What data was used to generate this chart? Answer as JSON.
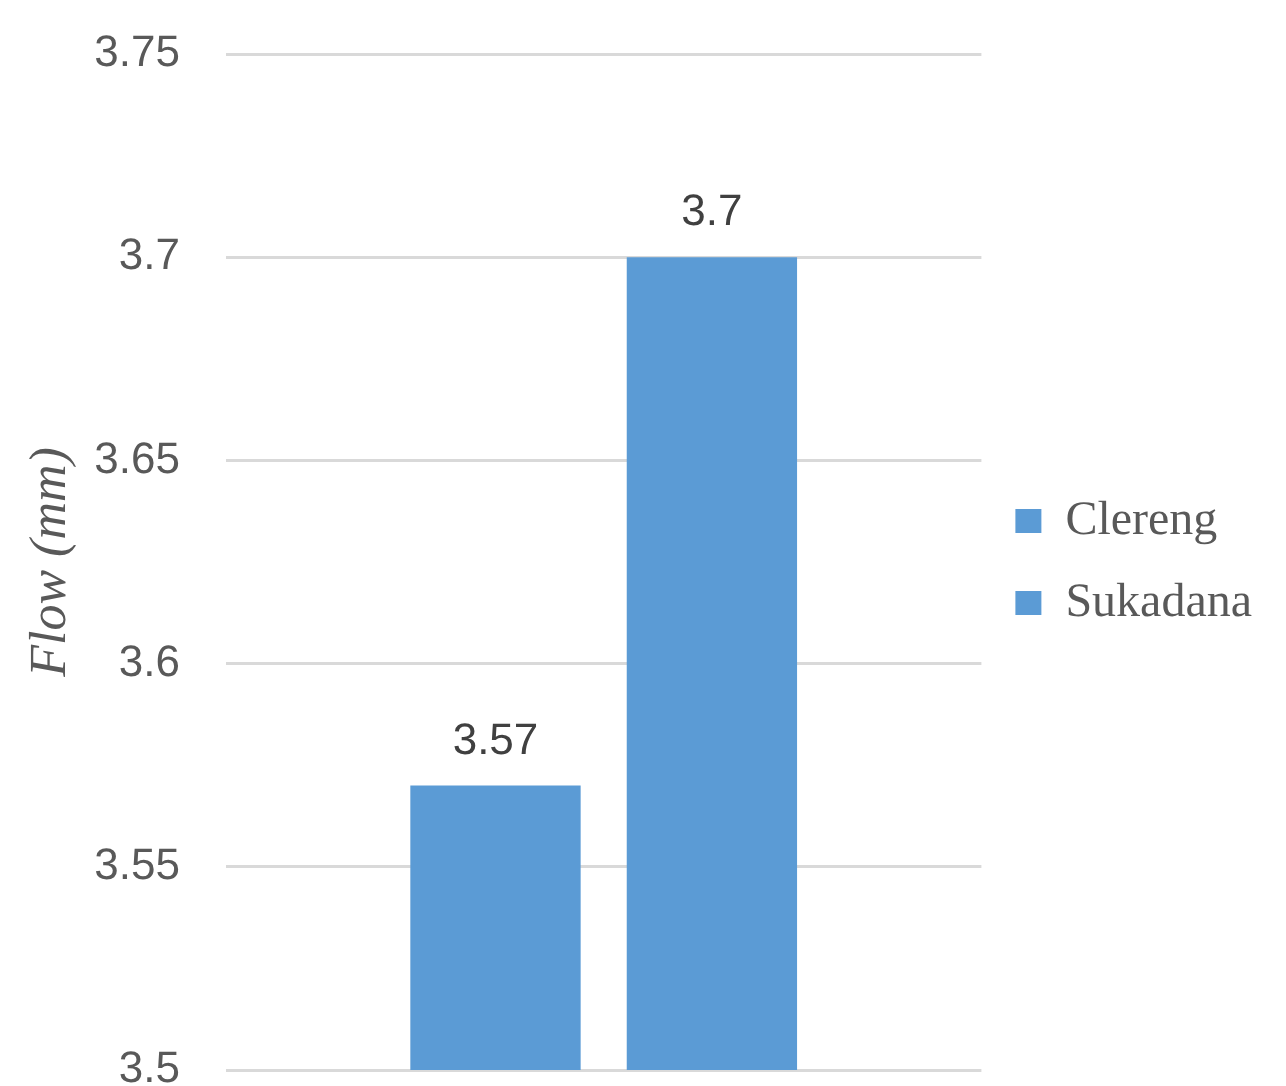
{
  "chart_data": {
    "type": "bar",
    "ylabel": "Flow (mm)",
    "categories": [
      null
    ],
    "series": [
      {
        "name": "Clereng",
        "color": "#5b9bd5",
        "values": [
          3.57
        ]
      },
      {
        "name": "Sukadana",
        "color": "#5b9bd5",
        "values": [
          3.7
        ]
      }
    ],
    "ylim": [
      3.5,
      3.75
    ],
    "yticks": [
      3.5,
      3.55,
      3.6,
      3.65,
      3.7,
      3.75
    ],
    "grid": "y",
    "legend": "right",
    "data_labels": true
  }
}
